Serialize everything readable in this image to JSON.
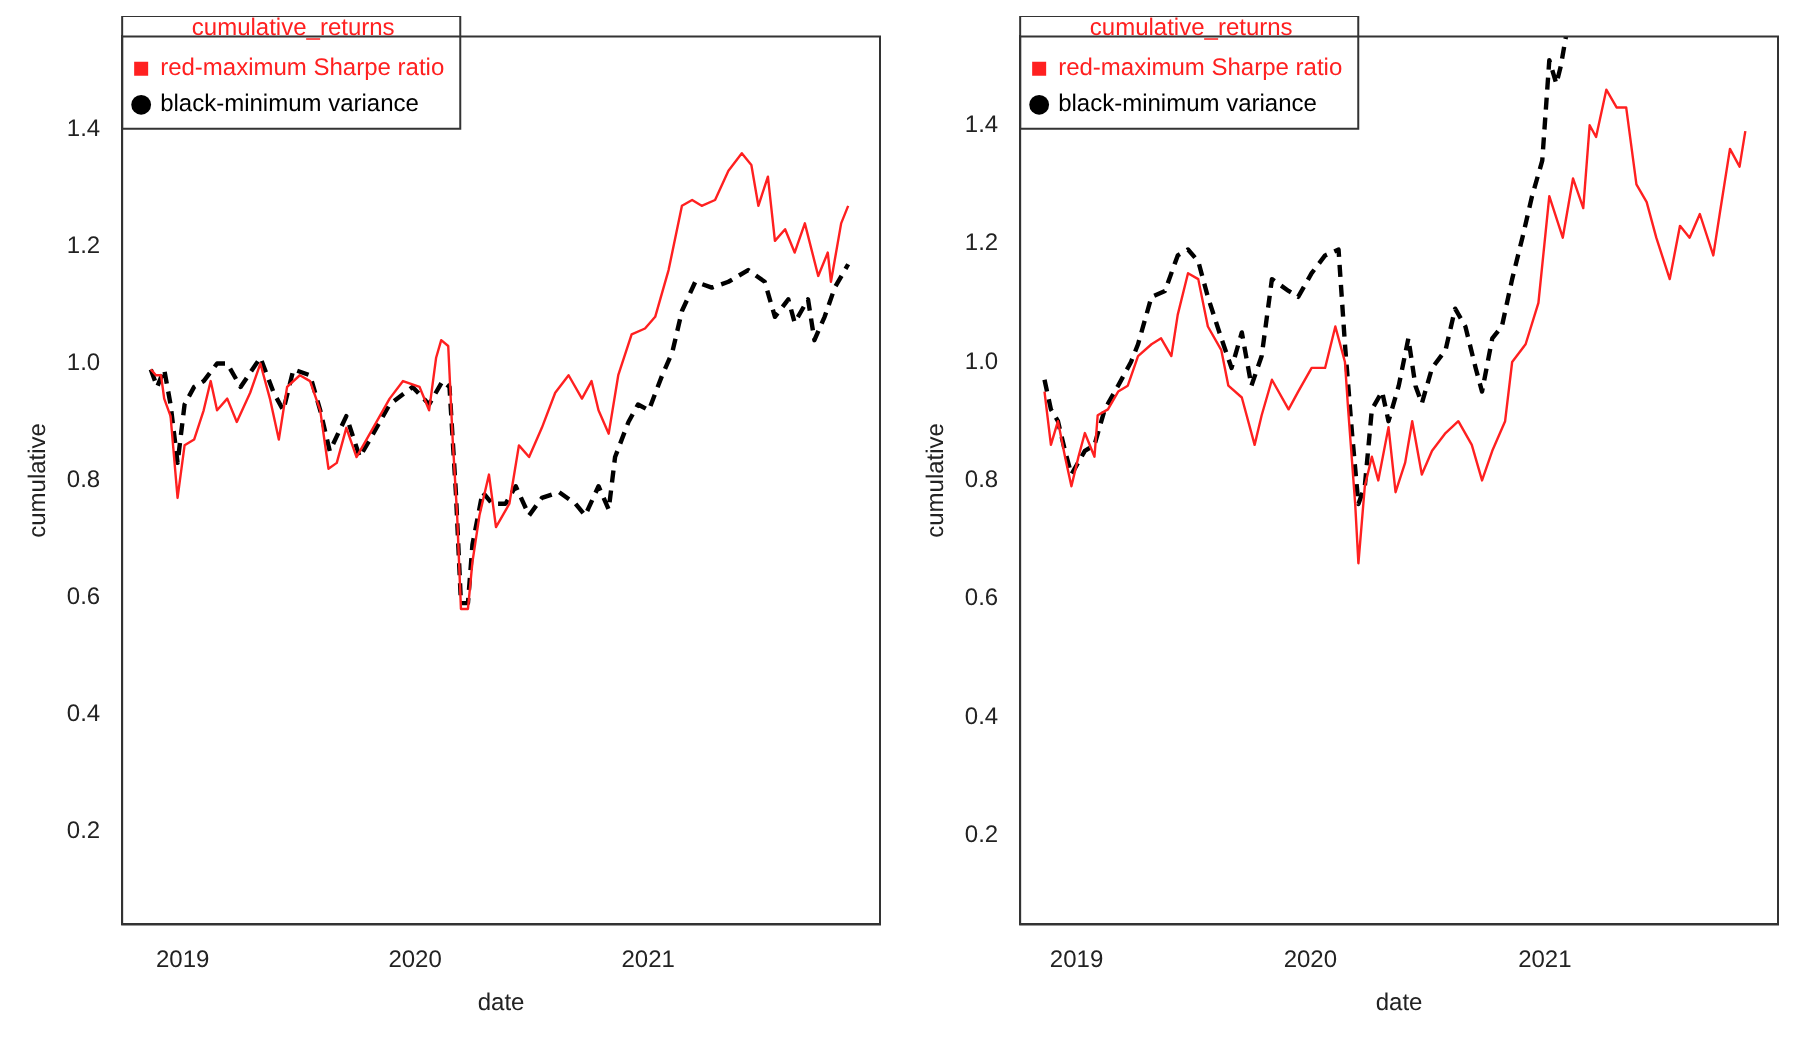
{
  "chart_data": [
    {
      "type": "line",
      "xlabel": "date",
      "ylabel": "cumulative",
      "legend_title": "cumulative_returns",
      "legend": "top left",
      "xlim": [
        "2018-09-28",
        "2021-12-31"
      ],
      "xticks": [
        {
          "value": "2019-01-01",
          "label": "2019"
        },
        {
          "value": "2020-01-01",
          "label": "2020"
        },
        {
          "value": "2021-01-01",
          "label": "2021"
        }
      ],
      "ylim": [
        0.04,
        1.56
      ],
      "yticks": [
        0.2,
        0.4,
        0.6,
        0.8,
        {
          "value": 1.0,
          "label": "1.0"
        },
        1.2,
        1.4
      ],
      "grid": false,
      "series": [
        {
          "name": "red-maximum Sharpe ratio",
          "color": "#ff2020",
          "line_style": "solid",
          "x": [
            "2018-11-12",
            "2018-11-20",
            "2018-11-28",
            "2018-12-03",
            "2018-12-13",
            "2018-12-24",
            "2019-01-04",
            "2019-01-19",
            "2019-02-03",
            "2019-02-14",
            "2019-02-24",
            "2019-03-12",
            "2019-03-27",
            "2019-04-17",
            "2019-05-03",
            "2019-05-18",
            "2019-06-01",
            "2019-06-14",
            "2019-07-04",
            "2019-07-20",
            "2019-08-05",
            "2019-08-18",
            "2019-08-31",
            "2019-09-15",
            "2019-10-01",
            "2019-10-22",
            "2019-11-22",
            "2019-12-13",
            "2020-01-08",
            "2020-01-23",
            "2020-02-03",
            "2020-02-11",
            "2020-02-22",
            "2020-02-29",
            "2020-03-07",
            "2020-03-13",
            "2020-03-24",
            "2020-03-31",
            "2020-04-11",
            "2020-04-26",
            "2020-05-07",
            "2020-05-28",
            "2020-06-12",
            "2020-06-28",
            "2020-07-18",
            "2020-08-08",
            "2020-08-29",
            "2020-09-19",
            "2020-10-04",
            "2020-10-15",
            "2020-10-31",
            "2020-11-15",
            "2020-12-06",
            "2020-12-27",
            "2021-01-12",
            "2021-02-02",
            "2021-02-23",
            "2021-03-11",
            "2021-03-26",
            "2021-04-16",
            "2021-05-07",
            "2021-05-28",
            "2021-06-12",
            "2021-06-23",
            "2021-07-08",
            "2021-07-19",
            "2021-08-04",
            "2021-08-19",
            "2021-09-04",
            "2021-09-25",
            "2021-10-10",
            "2021-10-15",
            "2021-10-31",
            "2021-11-11"
          ],
          "values": [
            0.99,
            0.98,
            0.98,
            0.94,
            0.91,
            0.77,
            0.86,
            0.87,
            0.92,
            0.97,
            0.92,
            0.94,
            0.9,
            0.95,
            1.0,
            0.94,
            0.87,
            0.96,
            0.98,
            0.97,
            0.92,
            0.82,
            0.83,
            0.89,
            0.84,
            0.88,
            0.94,
            0.97,
            0.96,
            0.92,
            1.01,
            1.04,
            1.03,
            0.87,
            0.74,
            0.58,
            0.58,
            0.66,
            0.74,
            0.81,
            0.72,
            0.76,
            0.86,
            0.84,
            0.89,
            0.95,
            0.98,
            0.94,
            0.97,
            0.92,
            0.88,
            0.98,
            1.05,
            1.06,
            1.08,
            1.16,
            1.27,
            1.28,
            1.27,
            1.28,
            1.33,
            1.36,
            1.34,
            1.27,
            1.32,
            1.21,
            1.23,
            1.19,
            1.24,
            1.15,
            1.19,
            1.14,
            1.24,
            1.27
          ]
        },
        {
          "name": "black-minimum variance",
          "color": "#000000",
          "line_style": "dashed",
          "x": [
            "2018-11-12",
            "2018-11-22",
            "2018-12-03",
            "2018-12-13",
            "2018-12-24",
            "2019-01-04",
            "2019-01-19",
            "2019-02-03",
            "2019-02-24",
            "2019-03-12",
            "2019-04-02",
            "2019-05-03",
            "2019-05-24",
            "2019-06-08",
            "2019-06-24",
            "2019-07-20",
            "2019-08-05",
            "2019-08-20",
            "2019-09-15",
            "2019-10-06",
            "2019-10-22",
            "2019-11-22",
            "2019-12-28",
            "2020-01-23",
            "2020-02-13",
            "2020-02-24",
            "2020-03-05",
            "2020-03-13",
            "2020-03-24",
            "2020-03-31",
            "2020-04-16",
            "2020-05-01",
            "2020-05-22",
            "2020-06-07",
            "2020-06-28",
            "2020-07-18",
            "2020-08-14",
            "2020-09-09",
            "2020-09-24",
            "2020-10-15",
            "2020-10-31",
            "2020-11-10",
            "2020-12-01",
            "2020-12-16",
            "2021-01-02",
            "2021-01-23",
            "2021-02-08",
            "2021-02-23",
            "2021-03-16",
            "2021-04-11",
            "2021-05-07",
            "2021-06-07",
            "2021-07-03",
            "2021-07-19",
            "2021-08-09",
            "2021-08-19",
            "2021-09-09",
            "2021-09-19",
            "2021-10-05",
            "2021-10-21",
            "2021-11-11"
          ],
          "values": [
            0.99,
            0.96,
            0.99,
            0.93,
            0.83,
            0.93,
            0.96,
            0.97,
            1.0,
            1.0,
            0.96,
            1.01,
            0.95,
            0.92,
            0.99,
            0.98,
            0.92,
            0.85,
            0.91,
            0.84,
            0.87,
            0.93,
            0.96,
            0.93,
            0.97,
            0.96,
            0.78,
            0.59,
            0.59,
            0.69,
            0.78,
            0.76,
            0.76,
            0.79,
            0.74,
            0.77,
            0.78,
            0.76,
            0.74,
            0.79,
            0.75,
            0.84,
            0.9,
            0.93,
            0.92,
            0.98,
            1.02,
            1.09,
            1.14,
            1.13,
            1.14,
            1.16,
            1.14,
            1.08,
            1.11,
            1.07,
            1.11,
            1.04,
            1.08,
            1.13,
            1.17
          ]
        }
      ]
    },
    {
      "type": "line",
      "xlabel": "date",
      "ylabel": "cumulative",
      "legend_title": "cumulative_returns",
      "legend": "top left",
      "xlim": [
        "2018-10-05",
        "2021-12-31"
      ],
      "xticks": [
        {
          "value": "2019-01-01",
          "label": "2019"
        },
        {
          "value": "2020-01-01",
          "label": "2020"
        },
        {
          "value": "2021-01-01",
          "label": "2021"
        }
      ],
      "ylim": [
        0.05,
        1.55
      ],
      "yticks": [
        0.2,
        0.4,
        0.6,
        0.8,
        {
          "value": 1.0,
          "label": "1.0"
        },
        1.2,
        1.4
      ],
      "grid": false,
      "series": [
        {
          "name": "red-maximum Sharpe ratio",
          "color": "#ff2020",
          "line_style": "solid",
          "x": [
            "2018-11-12",
            "2018-11-22",
            "2018-12-03",
            "2018-12-14",
            "2018-12-24",
            "2019-01-04",
            "2019-01-14",
            "2019-01-29",
            "2019-02-03",
            "2019-02-19",
            "2019-03-07",
            "2019-03-22",
            "2019-04-07",
            "2019-04-28",
            "2019-05-13",
            "2019-05-29",
            "2019-06-08",
            "2019-06-24",
            "2019-07-10",
            "2019-07-25",
            "2019-08-15",
            "2019-08-26",
            "2019-09-16",
            "2019-10-06",
            "2019-10-17",
            "2019-11-02",
            "2019-11-28",
            "2019-12-13",
            "2020-01-03",
            "2020-01-24",
            "2020-02-09",
            "2020-02-24",
            "2020-02-29",
            "2020-03-11",
            "2020-03-16",
            "2020-03-26",
            "2020-04-06",
            "2020-04-16",
            "2020-05-02",
            "2020-05-13",
            "2020-05-28",
            "2020-06-08",
            "2020-06-23",
            "2020-07-09",
            "2020-07-30",
            "2020-08-19",
            "2020-09-09",
            "2020-09-25",
            "2020-10-11",
            "2020-10-31",
            "2020-11-11",
            "2020-12-02",
            "2020-12-22",
            "2021-01-08",
            "2021-01-29",
            "2021-02-14",
            "2021-03-02",
            "2021-03-12",
            "2021-03-22",
            "2021-04-07",
            "2021-04-23",
            "2021-05-08",
            "2021-05-24",
            "2021-06-09",
            "2021-06-24",
            "2021-07-15",
            "2021-07-31",
            "2021-08-15",
            "2021-08-31",
            "2021-09-21",
            "2021-10-01",
            "2021-10-17",
            "2021-11-01",
            "2021-11-10"
          ],
          "values": [
            0.95,
            0.86,
            0.9,
            0.84,
            0.79,
            0.84,
            0.88,
            0.84,
            0.91,
            0.92,
            0.95,
            0.96,
            1.01,
            1.03,
            1.04,
            1.01,
            1.08,
            1.15,
            1.14,
            1.06,
            1.02,
            0.96,
            0.94,
            0.86,
            0.91,
            0.97,
            0.92,
            0.95,
            0.99,
            0.99,
            1.06,
            1.0,
            0.92,
            0.76,
            0.66,
            0.79,
            0.84,
            0.8,
            0.89,
            0.78,
            0.83,
            0.9,
            0.81,
            0.85,
            0.88,
            0.9,
            0.86,
            0.8,
            0.85,
            0.9,
            1.0,
            1.03,
            1.1,
            1.28,
            1.21,
            1.31,
            1.26,
            1.4,
            1.38,
            1.46,
            1.43,
            1.43,
            1.3,
            1.27,
            1.21,
            1.14,
            1.23,
            1.21,
            1.25,
            1.18,
            1.25,
            1.36,
            1.33,
            1.39
          ]
        },
        {
          "name": "black-minimum variance",
          "color": "#000000",
          "line_style": "dashed",
          "x": [
            "2018-11-12",
            "2018-11-22",
            "2018-12-03",
            "2018-12-14",
            "2018-12-24",
            "2019-01-14",
            "2019-01-29",
            "2019-02-14",
            "2019-03-07",
            "2019-03-27",
            "2019-04-07",
            "2019-04-28",
            "2019-05-19",
            "2019-06-08",
            "2019-06-24",
            "2019-07-10",
            "2019-07-25",
            "2019-08-15",
            "2019-08-31",
            "2019-09-16",
            "2019-10-01",
            "2019-10-17",
            "2019-11-02",
            "2019-11-28",
            "2019-12-13",
            "2020-01-03",
            "2020-01-24",
            "2020-02-14",
            "2020-02-24",
            "2020-03-06",
            "2020-03-16",
            "2020-03-26",
            "2020-04-06",
            "2020-04-22",
            "2020-05-02",
            "2020-05-18",
            "2020-06-02",
            "2020-06-13",
            "2020-06-23",
            "2020-07-09",
            "2020-07-30",
            "2020-08-14",
            "2020-08-30",
            "2020-09-15",
            "2020-09-25",
            "2020-10-11",
            "2020-10-26",
            "2020-11-11",
            "2020-11-27",
            "2020-12-12",
            "2020-12-28",
            "2021-01-08",
            "2021-01-19",
            "2021-01-26",
            "2021-02-03"
          ],
          "values": [
            0.97,
            0.92,
            0.9,
            0.85,
            0.81,
            0.85,
            0.86,
            0.92,
            0.96,
            1.0,
            1.03,
            1.11,
            1.12,
            1.18,
            1.19,
            1.17,
            1.11,
            1.04,
            0.99,
            1.05,
            0.96,
            1.01,
            1.14,
            1.12,
            1.11,
            1.15,
            1.18,
            1.19,
            1.03,
            0.88,
            0.76,
            0.79,
            0.92,
            0.95,
            0.9,
            0.96,
            1.04,
            0.96,
            0.93,
            0.99,
            1.02,
            1.09,
            1.06,
            0.99,
            0.95,
            1.04,
            1.06,
            1.14,
            1.21,
            1.28,
            1.34,
            1.51,
            1.47,
            1.5,
            1.55
          ]
        }
      ]
    }
  ]
}
